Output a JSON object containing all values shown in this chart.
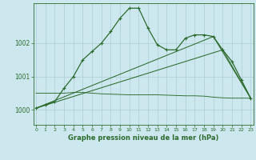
{
  "title": "Graphe pression niveau de la mer (hPa)",
  "background_color": "#cce8ee",
  "grid_color": "#aacdd5",
  "line_color": "#2d6a2d",
  "x_ticks": [
    0,
    1,
    2,
    3,
    4,
    5,
    6,
    7,
    8,
    9,
    10,
    11,
    12,
    13,
    14,
    15,
    16,
    17,
    18,
    19,
    20,
    21,
    22,
    23
  ],
  "y_ticks": [
    1000,
    1001,
    1002
  ],
  "ylim": [
    999.55,
    1003.2
  ],
  "xlim": [
    -0.3,
    23.3
  ],
  "series1_x": [
    0,
    1,
    2,
    3,
    4,
    5,
    6,
    7,
    8,
    9,
    10,
    11,
    12,
    13,
    14,
    15,
    16,
    17,
    18,
    19,
    20,
    21,
    22,
    23
  ],
  "series1_y": [
    1000.05,
    1000.15,
    1000.25,
    1000.65,
    1001.0,
    1001.5,
    1001.75,
    1002.0,
    1002.35,
    1002.75,
    1003.05,
    1003.05,
    1002.45,
    1001.95,
    1001.8,
    1001.8,
    1002.15,
    1002.25,
    1002.25,
    1002.2,
    1001.8,
    1001.45,
    1000.9,
    1000.35
  ],
  "series2_x": [
    0,
    19,
    23
  ],
  "series2_y": [
    1000.05,
    1002.2,
    1000.35
  ],
  "series3_x": [
    0,
    20,
    23
  ],
  "series3_y": [
    1000.05,
    1001.8,
    1000.35
  ],
  "series4_x": [
    0,
    1,
    2,
    3,
    4,
    5,
    6,
    7,
    8,
    9,
    10,
    11,
    12,
    13,
    14,
    15,
    16,
    17,
    18,
    19,
    20,
    21,
    22,
    23
  ],
  "series4_y": [
    1000.5,
    1000.5,
    1000.5,
    1000.5,
    1000.52,
    1000.52,
    1000.5,
    1000.48,
    1000.47,
    1000.46,
    1000.45,
    1000.45,
    1000.45,
    1000.45,
    1000.44,
    1000.43,
    1000.42,
    1000.42,
    1000.41,
    1000.38,
    1000.36,
    1000.35,
    1000.35,
    1000.35
  ]
}
